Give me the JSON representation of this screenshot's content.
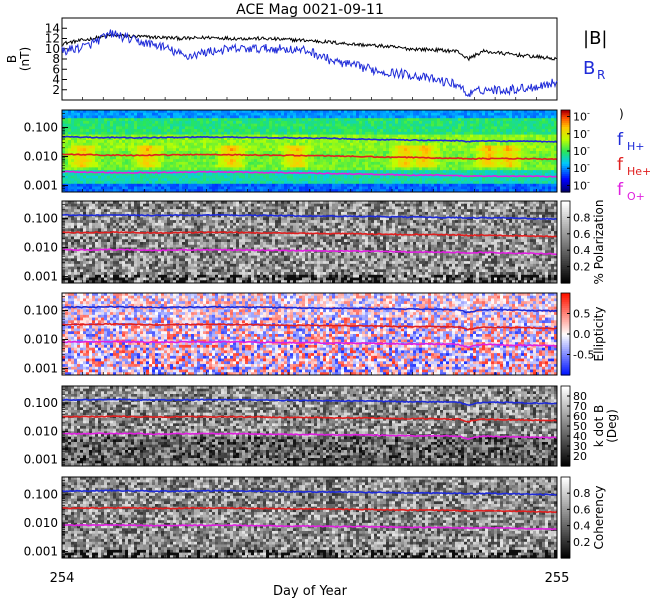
{
  "title": "ACE Mag 0021-09-11",
  "xlabel": "Day of Year",
  "x_ticks": [
    "254",
    "255"
  ],
  "legend_top": {
    "b_total": "|B|",
    "b_radial_main": "B",
    "b_radial_sub": "R"
  },
  "legend_freq": [
    {
      "main": "f",
      "sub": "H+",
      "color": "#1f2bd8"
    },
    {
      "main": "f",
      "sub": "He+",
      "color": "#e02020"
    },
    {
      "main": "f",
      "sub": "O+",
      "color": "#e020e0"
    }
  ],
  "colors": {
    "bt": "#000000",
    "br": "#1f2bd8",
    "fh": "#1f2bd8",
    "fhe": "#e02020",
    "fo": "#e020e0"
  },
  "chart_data": [
    {
      "type": "line",
      "title": "ACE Mag 0021-09-11",
      "ylabel": "B (nT)",
      "ylabel_lines": [
        "B",
        "(nT)"
      ],
      "y_ticks": [
        "2",
        "4",
        "6",
        "8",
        "10",
        "12",
        "14"
      ],
      "ylim": [
        0,
        16
      ],
      "xlim": [
        254,
        255
      ],
      "x": [
        254.0,
        254.05,
        254.1,
        254.15,
        254.2,
        254.25,
        254.3,
        254.35,
        254.4,
        254.45,
        254.5,
        254.55,
        254.6,
        254.65,
        254.7,
        254.75,
        254.8,
        254.82,
        254.85,
        254.9,
        254.95,
        255.0
      ],
      "series": [
        {
          "name": "|B|",
          "values": [
            11.0,
            11.8,
            12.6,
            12.4,
            12.2,
            12.0,
            12.2,
            12.0,
            12.0,
            11.8,
            11.6,
            11.2,
            10.8,
            10.5,
            10.0,
            9.8,
            9.5,
            8.0,
            9.5,
            9.0,
            8.5,
            8.0
          ]
        },
        {
          "name": "B_R",
          "values": [
            9.5,
            10.5,
            13.0,
            11.5,
            10.5,
            8.5,
            9.5,
            10.0,
            10.0,
            10.0,
            9.5,
            7.5,
            6.5,
            5.5,
            5.0,
            4.0,
            3.0,
            1.0,
            2.0,
            2.0,
            2.5,
            3.5
          ]
        }
      ]
    },
    {
      "type": "heatmap",
      "ylabel": "",
      "y_scale": "log",
      "y_ticks": [
        "0.001",
        "0.010",
        "0.100"
      ],
      "colorbar_label": "",
      "colorbar_ticks": [
        "10",
        "10",
        "10",
        "10",
        "10"
      ],
      "series": [
        {
          "name": "f_H+",
          "values": [
            0.048,
            0.046,
            0.045,
            0.044,
            0.045,
            0.046,
            0.047,
            0.046,
            0.045,
            0.044,
            0.043,
            0.042,
            0.04,
            0.038,
            0.037,
            0.036,
            0.035,
            0.033,
            0.034,
            0.034,
            0.033,
            0.032
          ]
        },
        {
          "name": "f_He+",
          "values": [
            0.012,
            0.0115,
            0.0112,
            0.011,
            0.0112,
            0.0115,
            0.0118,
            0.0115,
            0.0112,
            0.011,
            0.0108,
            0.0105,
            0.01,
            0.0095,
            0.0093,
            0.009,
            0.0088,
            0.0083,
            0.0085,
            0.0085,
            0.0083,
            0.008
          ]
        },
        {
          "name": "f_O+",
          "values": [
            0.003,
            0.0029,
            0.0028,
            0.0028,
            0.0028,
            0.0029,
            0.003,
            0.0029,
            0.0028,
            0.0028,
            0.0027,
            0.0026,
            0.0025,
            0.0024,
            0.0023,
            0.0023,
            0.0022,
            0.0021,
            0.0021,
            0.0021,
            0.0021,
            0.002
          ]
        }
      ]
    },
    {
      "type": "heatmap",
      "ylabel": "",
      "y_scale": "log",
      "y_ticks": [
        "0.001",
        "0.010",
        "0.100"
      ],
      "colorbar_label": "% Polarization",
      "colorbar_ticks": [
        "0.2",
        "0.4",
        "0.6",
        "0.8"
      ],
      "colormap": "gray",
      "series": [
        {
          "name": "f_H+",
          "values": [
            0.13,
            0.13,
            0.135,
            0.13,
            0.128,
            0.13,
            0.132,
            0.13,
            0.128,
            0.125,
            0.122,
            0.12,
            0.118,
            0.115,
            0.112,
            0.11,
            0.108,
            0.105,
            0.106,
            0.105,
            0.1,
            0.095
          ]
        },
        {
          "name": "f_He+",
          "values": [
            0.033,
            0.033,
            0.034,
            0.033,
            0.032,
            0.033,
            0.033,
            0.033,
            0.032,
            0.031,
            0.031,
            0.03,
            0.03,
            0.029,
            0.028,
            0.028,
            0.027,
            0.026,
            0.027,
            0.026,
            0.025,
            0.024
          ]
        },
        {
          "name": "f_O+",
          "values": [
            0.0083,
            0.0083,
            0.0085,
            0.0083,
            0.008,
            0.0083,
            0.0083,
            0.0083,
            0.008,
            0.0078,
            0.0078,
            0.0075,
            0.0075,
            0.0073,
            0.007,
            0.007,
            0.0068,
            0.0065,
            0.0068,
            0.0065,
            0.0063,
            0.006
          ]
        }
      ]
    },
    {
      "type": "heatmap",
      "ylabel": "",
      "y_scale": "log",
      "y_ticks": [
        "0.001",
        "0.010",
        "0.100"
      ],
      "colorbar_label": "Ellipticity",
      "colorbar_ticks": [
        "-0.5",
        "0.0",
        "0.5"
      ],
      "colormap": "blue-white-red",
      "series": [
        {
          "name": "f_H+",
          "values": [
            0.13,
            0.13,
            0.135,
            0.13,
            0.128,
            0.13,
            0.132,
            0.13,
            0.128,
            0.125,
            0.122,
            0.12,
            0.118,
            0.115,
            0.112,
            0.11,
            0.108,
            0.085,
            0.106,
            0.105,
            0.1,
            0.095
          ]
        },
        {
          "name": "f_He+",
          "values": [
            0.033,
            0.033,
            0.034,
            0.033,
            0.032,
            0.033,
            0.033,
            0.033,
            0.032,
            0.031,
            0.031,
            0.03,
            0.03,
            0.029,
            0.028,
            0.028,
            0.027,
            0.022,
            0.027,
            0.026,
            0.025,
            0.024
          ]
        },
        {
          "name": "f_O+",
          "values": [
            0.0083,
            0.0083,
            0.0085,
            0.0083,
            0.008,
            0.0083,
            0.0083,
            0.0083,
            0.008,
            0.0078,
            0.0078,
            0.0075,
            0.0075,
            0.0073,
            0.007,
            0.007,
            0.0068,
            0.0055,
            0.0068,
            0.0065,
            0.0063,
            0.006
          ]
        }
      ]
    },
    {
      "type": "heatmap",
      "ylabel": "",
      "y_scale": "log",
      "y_ticks": [
        "0.001",
        "0.010",
        "0.100"
      ],
      "colorbar_label_lines": [
        "k dot B",
        "(Deg)"
      ],
      "colorbar_ticks": [
        "20",
        "30",
        "40",
        "50",
        "60",
        "70",
        "80"
      ],
      "colormap": "gray",
      "series": [
        {
          "name": "f_H+",
          "values": [
            0.13,
            0.13,
            0.135,
            0.13,
            0.128,
            0.13,
            0.132,
            0.13,
            0.128,
            0.125,
            0.122,
            0.12,
            0.118,
            0.115,
            0.112,
            0.11,
            0.108,
            0.085,
            0.106,
            0.105,
            0.1,
            0.095
          ]
        },
        {
          "name": "f_He+",
          "values": [
            0.033,
            0.033,
            0.034,
            0.033,
            0.032,
            0.033,
            0.033,
            0.033,
            0.032,
            0.031,
            0.031,
            0.03,
            0.03,
            0.029,
            0.028,
            0.028,
            0.027,
            0.022,
            0.027,
            0.026,
            0.025,
            0.024
          ]
        },
        {
          "name": "f_O+",
          "values": [
            0.0083,
            0.0083,
            0.0085,
            0.0083,
            0.008,
            0.0083,
            0.0083,
            0.0083,
            0.008,
            0.0078,
            0.0078,
            0.0075,
            0.0075,
            0.0073,
            0.007,
            0.007,
            0.0068,
            0.0055,
            0.0068,
            0.0065,
            0.0063,
            0.006
          ]
        }
      ]
    },
    {
      "type": "heatmap",
      "ylabel": "",
      "y_scale": "log",
      "y_ticks": [
        "0.001",
        "0.010",
        "0.100"
      ],
      "colorbar_label": "Coherency",
      "colorbar_ticks": [
        "0.2",
        "0.4",
        "0.6",
        "0.8"
      ],
      "colormap": "gray",
      "series": [
        {
          "name": "f_H+",
          "values": [
            0.13,
            0.13,
            0.135,
            0.13,
            0.128,
            0.13,
            0.132,
            0.13,
            0.128,
            0.125,
            0.122,
            0.12,
            0.118,
            0.115,
            0.112,
            0.11,
            0.108,
            0.105,
            0.106,
            0.105,
            0.1,
            0.095
          ]
        },
        {
          "name": "f_He+",
          "values": [
            0.033,
            0.033,
            0.034,
            0.033,
            0.032,
            0.033,
            0.033,
            0.033,
            0.032,
            0.031,
            0.031,
            0.03,
            0.03,
            0.029,
            0.028,
            0.028,
            0.027,
            0.026,
            0.027,
            0.026,
            0.025,
            0.024
          ]
        },
        {
          "name": "f_O+",
          "values": [
            0.0083,
            0.0083,
            0.0085,
            0.0083,
            0.008,
            0.0083,
            0.0083,
            0.0083,
            0.008,
            0.0078,
            0.0078,
            0.0075,
            0.0075,
            0.0073,
            0.007,
            0.007,
            0.0068,
            0.0065,
            0.0068,
            0.0065,
            0.0063,
            0.006
          ]
        }
      ]
    }
  ]
}
